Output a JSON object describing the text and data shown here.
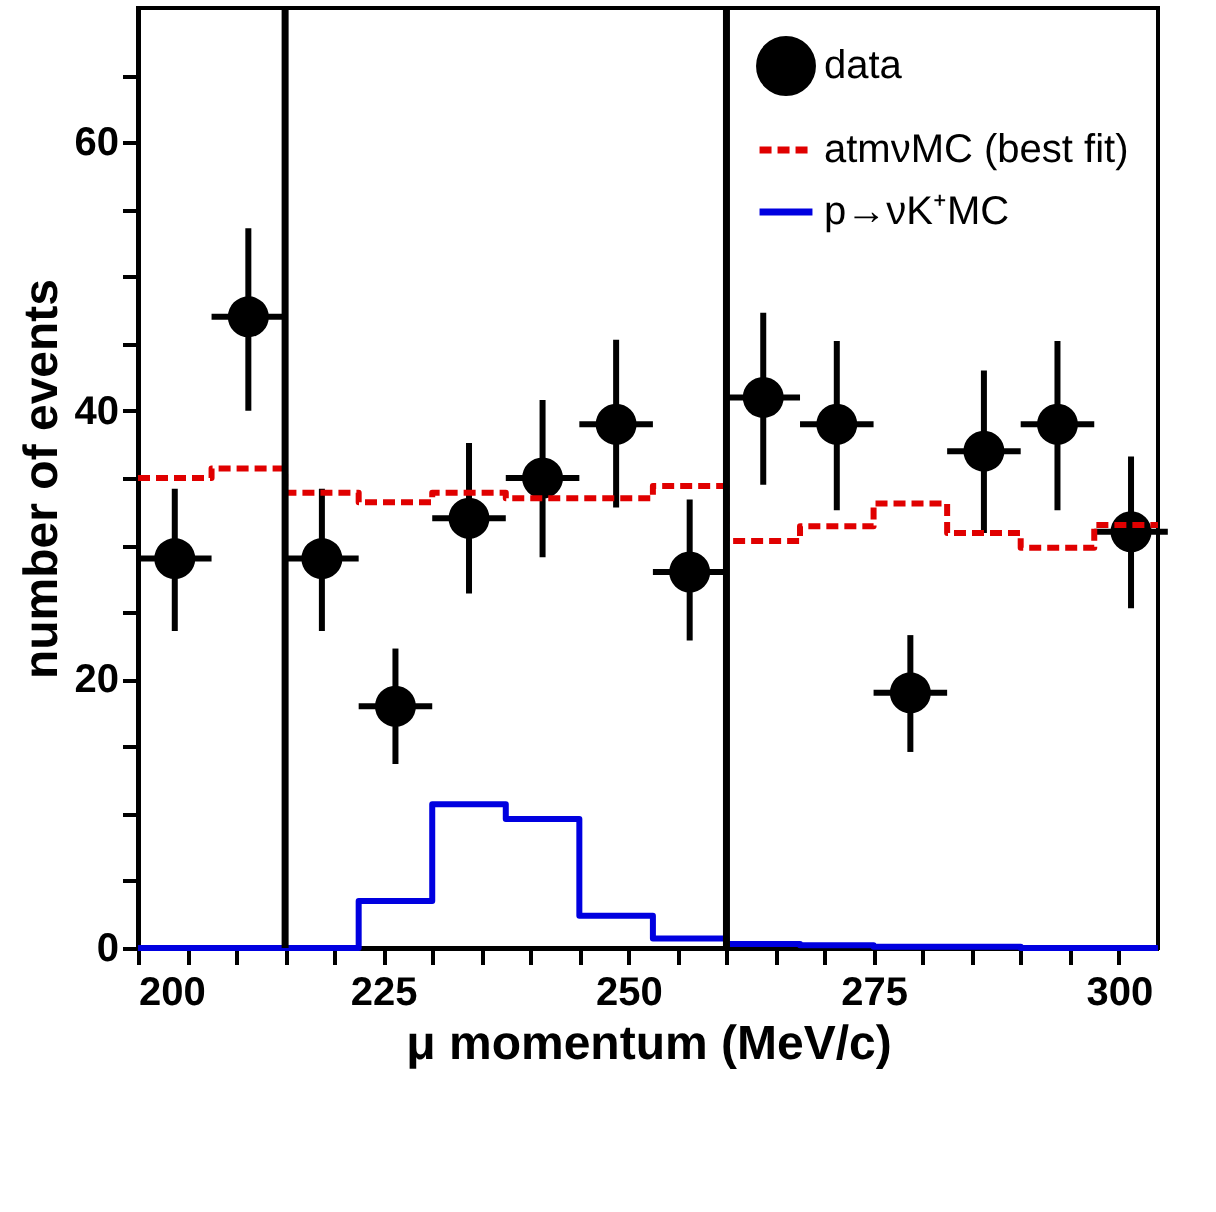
{
  "chart_data": {
    "type": "step",
    "xlabel": "μ momentum (MeV/c)",
    "ylabel": "number of events",
    "xlim": [
      200,
      304
    ],
    "ylim": [
      0,
      70
    ],
    "xticks": [
      200,
      {
        "value": 205,
        "label": null
      },
      {
        "value": 210,
        "label": null
      },
      {
        "value": 215,
        "label": null
      },
      {
        "value": 220,
        "label": null
      },
      225,
      {
        "value": 230,
        "label": null
      },
      {
        "value": 235,
        "label": null
      },
      {
        "value": 240,
        "label": null
      },
      {
        "value": 245,
        "label": null
      },
      250,
      {
        "value": 255,
        "label": null
      },
      {
        "value": 260,
        "label": null
      },
      {
        "value": 265,
        "label": null
      },
      {
        "value": 270,
        "label": null
      },
      275,
      {
        "value": 280,
        "label": null
      },
      {
        "value": 285,
        "label": null
      },
      {
        "value": 290,
        "label": null
      },
      {
        "value": 295,
        "label": null
      },
      300
    ],
    "yticks": [
      0,
      {
        "value": 5,
        "label": null
      },
      {
        "value": 10,
        "label": null
      },
      {
        "value": 15,
        "label": null
      },
      20,
      {
        "value": 25,
        "label": null
      },
      {
        "value": 30,
        "label": null
      },
      {
        "value": 35,
        "label": null
      },
      40,
      {
        "value": 45,
        "label": null
      },
      {
        "value": 50,
        "label": null
      },
      {
        "value": 55,
        "label": null
      },
      60,
      {
        "value": 65,
        "label": null
      }
    ],
    "grid": false,
    "legend": "top right",
    "series": [
      {
        "name": "data",
        "type": "scatter",
        "marker": "circle",
        "color": "#000000",
        "x": [
          203.75,
          211.25,
          218.75,
          226.25,
          233.75,
          241.25,
          248.75,
          256.25,
          263.75,
          271.25,
          278.75,
          286.25,
          293.75,
          301.25
        ],
        "values": [
          29,
          47,
          29,
          18,
          32,
          35,
          39,
          28,
          41,
          39,
          19,
          37,
          39,
          31
        ],
        "errors": [
          [
            23.6,
            34.2
          ],
          [
            40,
            53.6
          ],
          [
            23.6,
            34.2
          ],
          [
            13.7,
            22.3
          ],
          [
            26.4,
            37.6
          ],
          [
            29.1,
            40.8
          ],
          [
            32.8,
            45.3
          ],
          [
            22.9,
            33.4
          ],
          [
            34.5,
            47.3
          ],
          [
            32.6,
            45.2
          ],
          [
            14.6,
            23.3
          ],
          [
            30.9,
            43
          ],
          [
            32.6,
            45.2
          ],
          [
            25.3,
            36.6
          ]
        ],
        "xerrors": [
          3.75,
          3.75,
          3.75,
          3.75,
          3.75,
          3.75,
          3.75,
          3.75,
          3.75,
          3.75,
          3.75,
          3.75,
          3.75,
          3.75
        ]
      },
      {
        "name": "atmνMC (best fit)",
        "type": "step",
        "line_style": "dashed",
        "color": "#e00000",
        "x": [
          200,
          207.5,
          215,
          222.5,
          230,
          237.5,
          245,
          252.5,
          260,
          267.5,
          275,
          282.5,
          290,
          297.5,
          304
        ],
        "values": [
          35,
          35.7,
          33.9,
          33.2,
          33.9,
          33.5,
          33.5,
          34.4,
          30.3,
          31.4,
          33.1,
          30.9,
          29.8,
          31.5,
          31.5
        ]
      },
      {
        "name": "p→νK⁺MC",
        "type": "step",
        "line_style": "solid",
        "color": "#0000e0",
        "x": [
          200,
          207.5,
          215,
          222.5,
          230,
          237.5,
          245,
          252.5,
          260,
          267.5,
          275,
          282.5,
          290,
          297.5,
          304
        ],
        "values": [
          0,
          0,
          0,
          3.5,
          10.7,
          9.6,
          2.4,
          0.7,
          0.3,
          0.2,
          0.1,
          0.1,
          0,
          0,
          0
        ]
      }
    ],
    "ref_lines": [
      {
        "axis": "x",
        "value": 215,
        "color": "#000000",
        "line_style": "solid"
      },
      {
        "axis": "x",
        "value": 260,
        "color": "#000000",
        "line_style": "solid"
      }
    ]
  }
}
